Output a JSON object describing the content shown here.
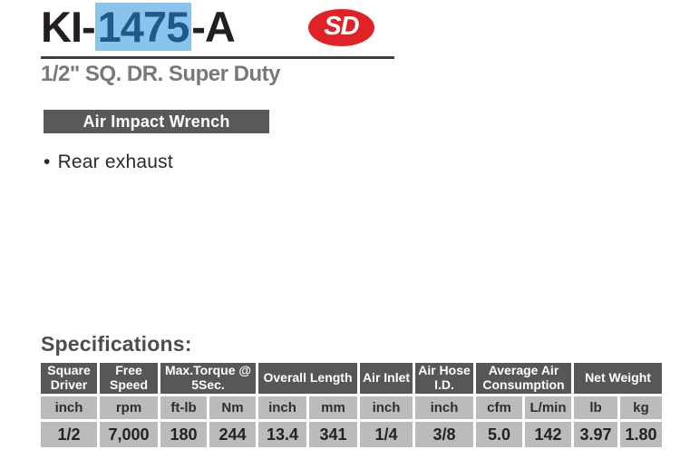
{
  "header": {
    "model_prefix": "KI-",
    "model_number": "1475",
    "model_suffix": "-A",
    "logo_text": "SD",
    "subtitle": "1/2\" SQ. DR. Super Duty",
    "category_badge": "Air Impact Wrench"
  },
  "features": {
    "bullet": "•",
    "item_1": "Rear exhaust"
  },
  "specifications": {
    "heading": "Specifications:"
  },
  "spec_table": {
    "groups": [
      {
        "label": "Square Driver",
        "colspan": 1
      },
      {
        "label": "Free Speed",
        "colspan": 1
      },
      {
        "label": "Max.Torque @ 5Sec.",
        "colspan": 2
      },
      {
        "label": "Overall Length",
        "colspan": 2
      },
      {
        "label": "Air Inlet",
        "colspan": 1
      },
      {
        "label": "Air Hose I.D.",
        "colspan": 1
      },
      {
        "label": "Average Air Consumption",
        "colspan": 2
      },
      {
        "label": "Net Weight",
        "colspan": 2
      }
    ],
    "units": [
      "inch",
      "rpm",
      "ft-lb",
      "Nm",
      "inch",
      "mm",
      "inch",
      "inch",
      "cfm",
      "L/min",
      "lb",
      "kg"
    ],
    "values": [
      "1/2",
      "7,000",
      "180",
      "244",
      "13.4",
      "341",
      "1/4",
      "3/8",
      "5.0",
      "142",
      "3.97",
      "1.80"
    ]
  },
  "colors": {
    "title_text": "#231F20",
    "model_highlight_bg": "#8AC4EC",
    "model_highlight_text": "#1C5A8C",
    "logo_red": "#E02227",
    "subtitle_gray": "#77787B",
    "badge_bg": "#58595B",
    "badge_text": "#FFFFFF",
    "table_header_bg": "#565759",
    "table_cell_bg": "#B9BBBD"
  }
}
